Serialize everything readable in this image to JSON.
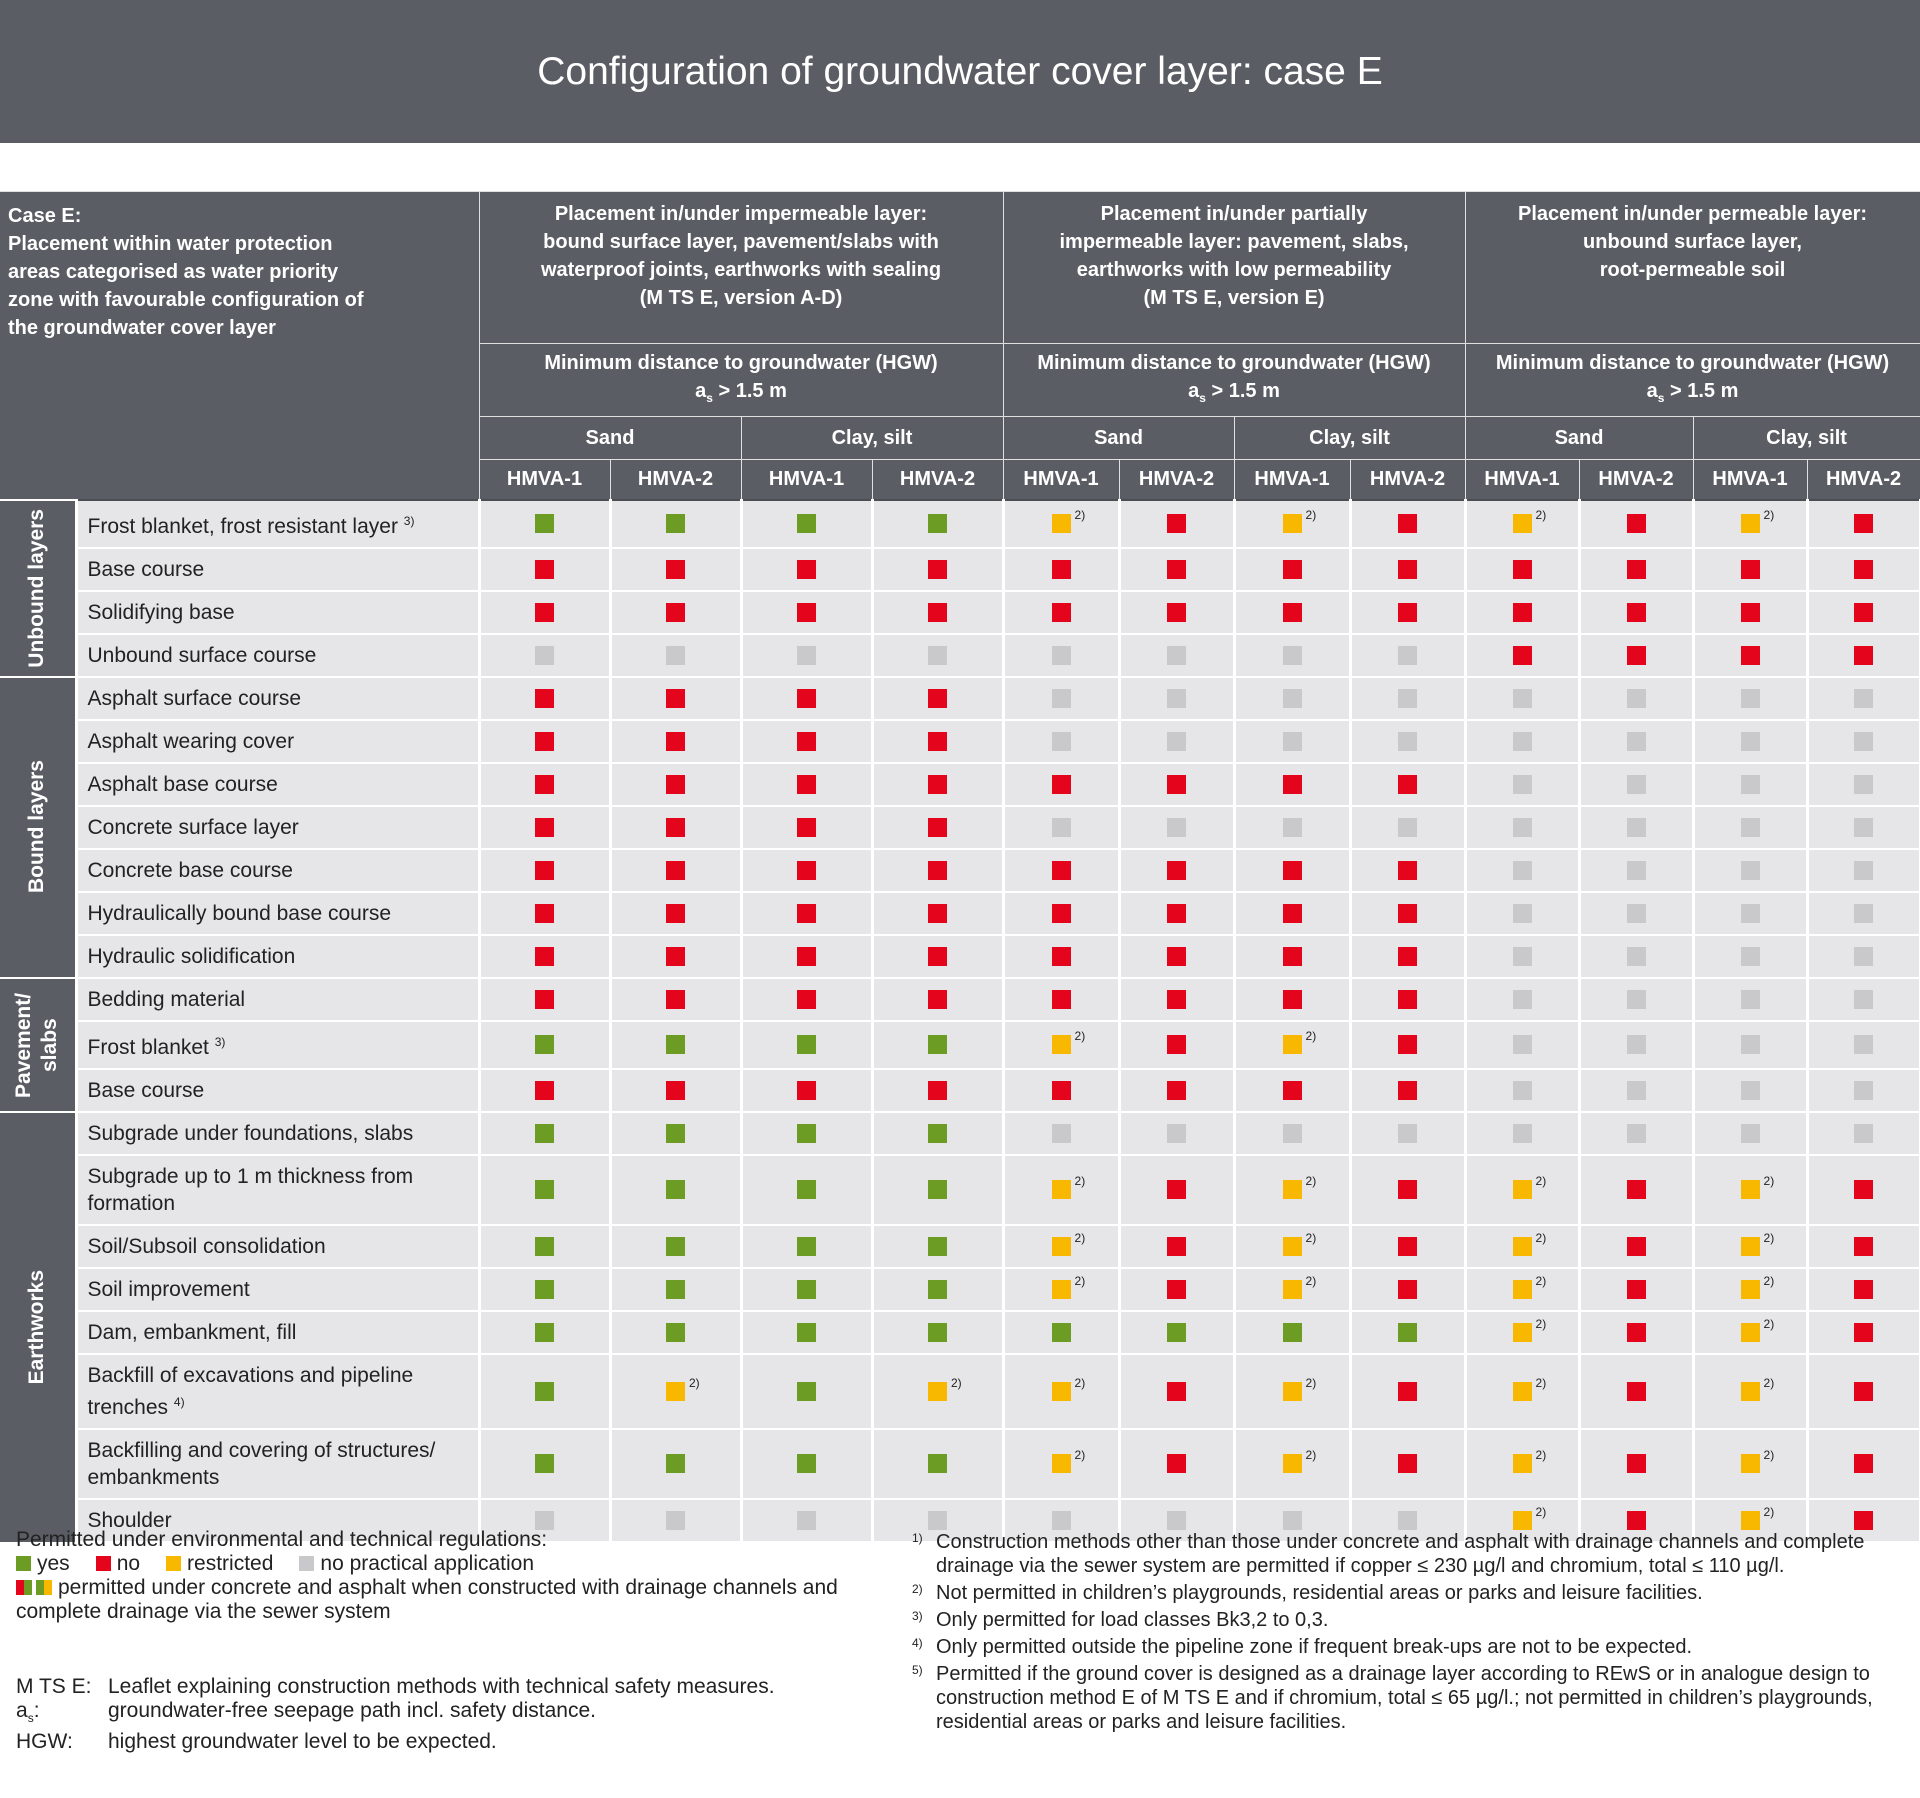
{
  "header": {
    "title": "Configuration of groundwater cover layer: case E"
  },
  "table": {
    "corner": {
      "case": "Case E:",
      "text": "Placement within water protection areas categorised as water priority zone with favourable configuration of the groundwater cover layer"
    },
    "column_groups": [
      {
        "lines": [
          "Placement in/under impermeable layer:",
          "bound surface layer, pavement/slabs with",
          "waterproof joints, earthworks with sealing",
          "(M TS E, version A-D)"
        ],
        "distance": {
          "label": "Minimum distance to groundwater (HGW)",
          "symbol": "a",
          "subscript": "s",
          "condition": "> 1.5 m"
        },
        "soils": [
          {
            "name": "Sand",
            "products": [
              "HMVA-1",
              "HMVA-2"
            ]
          },
          {
            "name": "Clay, silt",
            "products": [
              "HMVA-1",
              "HMVA-2"
            ]
          }
        ]
      },
      {
        "lines": [
          "Placement in/under partially",
          "impermeable layer: pavement, slabs,",
          "earthworks with low permeability",
          "(M TS E, version E)"
        ],
        "distance": {
          "label": "Minimum distance to groundwater (HGW)",
          "symbol": "a",
          "subscript": "s",
          "condition": "> 1.5 m"
        },
        "soils": [
          {
            "name": "Sand",
            "products": [
              "HMVA-1",
              "HMVA-2"
            ]
          },
          {
            "name": "Clay, silt",
            "products": [
              "HMVA-1",
              "HMVA-2"
            ]
          }
        ]
      },
      {
        "lines": [
          "Placement in/under permeable layer:",
          "unbound surface layer,",
          "root-permeable soil"
        ],
        "distance": {
          "label": "Minimum distance to groundwater (HGW)",
          "symbol": "a",
          "subscript": "s",
          "condition": "> 1.5 m"
        },
        "soils": [
          {
            "name": "Sand",
            "products": [
              "HMVA-1",
              "HMVA-2"
            ]
          },
          {
            "name": "Clay, silt",
            "products": [
              "HMVA-1",
              "HMVA-2"
            ]
          }
        ]
      }
    ],
    "row_groups": [
      {
        "label": "Unbound layers",
        "rows": [
          {
            "label": "Frost blanket, frost resistant layer",
            "note": "3)",
            "cells": [
              "#6d9c24",
              "#6d9c24",
              "#6d9c24",
              "#6d9c24",
              {
                "color": "#f9b800",
                "note": "2)"
              },
              "#e4051c",
              {
                "color": "#f9b800",
                "note": "2)"
              },
              "#e4051c",
              {
                "color": "#f9b800",
                "note": "2)"
              },
              "#e4051c",
              {
                "color": "#f9b800",
                "note": "2)"
              },
              "#e4051c"
            ]
          },
          {
            "label": "Base course",
            "cells": [
              "#e4051c",
              "#e4051c",
              "#e4051c",
              "#e4051c",
              "#e4051c",
              "#e4051c",
              "#e4051c",
              "#e4051c",
              "#e4051c",
              "#e4051c",
              "#e4051c",
              "#e4051c"
            ]
          },
          {
            "label": "Solidifying base",
            "cells": [
              "#e4051c",
              "#e4051c",
              "#e4051c",
              "#e4051c",
              "#e4051c",
              "#e4051c",
              "#e4051c",
              "#e4051c",
              "#e4051c",
              "#e4051c",
              "#e4051c",
              "#e4051c"
            ]
          },
          {
            "label": "Unbound surface course",
            "cells": [
              "#c9c9cb",
              "#c9c9cb",
              "#c9c9cb",
              "#c9c9cb",
              "#c9c9cb",
              "#c9c9cb",
              "#c9c9cb",
              "#c9c9cb",
              "#e4051c",
              "#e4051c",
              "#e4051c",
              "#e4051c"
            ]
          }
        ]
      },
      {
        "label": "Bound layers",
        "rows": [
          {
            "label": "Asphalt surface course",
            "cells": [
              "#e4051c",
              "#e4051c",
              "#e4051c",
              "#e4051c",
              "#c9c9cb",
              "#c9c9cb",
              "#c9c9cb",
              "#c9c9cb",
              "#c9c9cb",
              "#c9c9cb",
              "#c9c9cb",
              "#c9c9cb"
            ]
          },
          {
            "label": "Asphalt wearing cover",
            "cells": [
              "#e4051c",
              "#e4051c",
              "#e4051c",
              "#e4051c",
              "#c9c9cb",
              "#c9c9cb",
              "#c9c9cb",
              "#c9c9cb",
              "#c9c9cb",
              "#c9c9cb",
              "#c9c9cb",
              "#c9c9cb"
            ]
          },
          {
            "label": "Asphalt base course",
            "cells": [
              "#e4051c",
              "#e4051c",
              "#e4051c",
              "#e4051c",
              "#e4051c",
              "#e4051c",
              "#e4051c",
              "#e4051c",
              "#c9c9cb",
              "#c9c9cb",
              "#c9c9cb",
              "#c9c9cb"
            ]
          },
          {
            "label": "Concrete surface layer",
            "cells": [
              "#e4051c",
              "#e4051c",
              "#e4051c",
              "#e4051c",
              "#c9c9cb",
              "#c9c9cb",
              "#c9c9cb",
              "#c9c9cb",
              "#c9c9cb",
              "#c9c9cb",
              "#c9c9cb",
              "#c9c9cb"
            ]
          },
          {
            "label": "Concrete base course",
            "cells": [
              "#e4051c",
              "#e4051c",
              "#e4051c",
              "#e4051c",
              "#e4051c",
              "#e4051c",
              "#e4051c",
              "#e4051c",
              "#c9c9cb",
              "#c9c9cb",
              "#c9c9cb",
              "#c9c9cb"
            ]
          },
          {
            "label": "Hydraulically bound base course",
            "cells": [
              "#e4051c",
              "#e4051c",
              "#e4051c",
              "#e4051c",
              "#e4051c",
              "#e4051c",
              "#e4051c",
              "#e4051c",
              "#c9c9cb",
              "#c9c9cb",
              "#c9c9cb",
              "#c9c9cb"
            ]
          },
          {
            "label": "Hydraulic solidification",
            "cells": [
              "#e4051c",
              "#e4051c",
              "#e4051c",
              "#e4051c",
              "#e4051c",
              "#e4051c",
              "#e4051c",
              "#e4051c",
              "#c9c9cb",
              "#c9c9cb",
              "#c9c9cb",
              "#c9c9cb"
            ]
          }
        ]
      },
      {
        "label": "Pavement/ slabs",
        "rows": [
          {
            "label": "Bedding material",
            "cells": [
              "#e4051c",
              "#e4051c",
              "#e4051c",
              "#e4051c",
              "#e4051c",
              "#e4051c",
              "#e4051c",
              "#e4051c",
              "#c9c9cb",
              "#c9c9cb",
              "#c9c9cb",
              "#c9c9cb"
            ]
          },
          {
            "label": "Frost blanket",
            "note": "3)",
            "cells": [
              "#6d9c24",
              "#6d9c24",
              "#6d9c24",
              "#6d9c24",
              {
                "color": "#f9b800",
                "note": "2)"
              },
              "#e4051c",
              {
                "color": "#f9b800",
                "note": "2)"
              },
              "#e4051c",
              "#c9c9cb",
              "#c9c9cb",
              "#c9c9cb",
              "#c9c9cb"
            ]
          },
          {
            "label": "Base course",
            "cells": [
              "#e4051c",
              "#e4051c",
              "#e4051c",
              "#e4051c",
              "#e4051c",
              "#e4051c",
              "#e4051c",
              "#e4051c",
              "#c9c9cb",
              "#c9c9cb",
              "#c9c9cb",
              "#c9c9cb"
            ]
          }
        ]
      },
      {
        "label": "Earthworks",
        "rows": [
          {
            "label": "Subgrade under foundations, slabs",
            "cells": [
              "#6d9c24",
              "#6d9c24",
              "#6d9c24",
              "#6d9c24",
              "#c9c9cb",
              "#c9c9cb",
              "#c9c9cb",
              "#c9c9cb",
              "#c9c9cb",
              "#c9c9cb",
              "#c9c9cb",
              "#c9c9cb"
            ]
          },
          {
            "label": "Subgrade up to 1 m thickness from formation",
            "cells": [
              "#6d9c24",
              "#6d9c24",
              "#6d9c24",
              "#6d9c24",
              {
                "color": "#f9b800",
                "note": "2)"
              },
              "#e4051c",
              {
                "color": "#f9b800",
                "note": "2)"
              },
              "#e4051c",
              {
                "color": "#f9b800",
                "note": "2)"
              },
              "#e4051c",
              {
                "color": "#f9b800",
                "note": "2)"
              },
              "#e4051c"
            ]
          },
          {
            "label": "Soil/Subsoil consolidation",
            "cells": [
              "#6d9c24",
              "#6d9c24",
              "#6d9c24",
              "#6d9c24",
              {
                "color": "#f9b800",
                "note": "2)"
              },
              "#e4051c",
              {
                "color": "#f9b800",
                "note": "2)"
              },
              "#e4051c",
              {
                "color": "#f9b800",
                "note": "2)"
              },
              "#e4051c",
              {
                "color": "#f9b800",
                "note": "2)"
              },
              "#e4051c"
            ]
          },
          {
            "label": "Soil improvement",
            "cells": [
              "#6d9c24",
              "#6d9c24",
              "#6d9c24",
              "#6d9c24",
              {
                "color": "#f9b800",
                "note": "2)"
              },
              "#e4051c",
              {
                "color": "#f9b800",
                "note": "2)"
              },
              "#e4051c",
              {
                "color": "#f9b800",
                "note": "2)"
              },
              "#e4051c",
              {
                "color": "#f9b800",
                "note": "2)"
              },
              "#e4051c"
            ]
          },
          {
            "label": "Dam, embankment, fill",
            "cells": [
              "#6d9c24",
              "#6d9c24",
              "#6d9c24",
              "#6d9c24",
              "#6d9c24",
              "#6d9c24",
              "#6d9c24",
              "#6d9c24",
              {
                "color": "#f9b800",
                "note": "2)"
              },
              "#e4051c",
              {
                "color": "#f9b800",
                "note": "2)"
              },
              "#e4051c"
            ]
          },
          {
            "label": "Backfill of excavations and pipeline trenches",
            "note": "4)",
            "cells": [
              "#6d9c24",
              {
                "color": "#f9b800",
                "note": "2)"
              },
              "#6d9c24",
              {
                "color": "#f9b800",
                "note": "2)"
              },
              {
                "color": "#f9b800",
                "note": "2)"
              },
              "#e4051c",
              {
                "color": "#f9b800",
                "note": "2)"
              },
              "#e4051c",
              {
                "color": "#f9b800",
                "note": "2)"
              },
              "#e4051c",
              {
                "color": "#f9b800",
                "note": "2)"
              },
              "#e4051c"
            ]
          },
          {
            "label": "Backfilling and covering of structures/ embankments",
            "cells": [
              "#6d9c24",
              "#6d9c24",
              "#6d9c24",
              "#6d9c24",
              {
                "color": "#f9b800",
                "note": "2)"
              },
              "#e4051c",
              {
                "color": "#f9b800",
                "note": "2)"
              },
              "#e4051c",
              {
                "color": "#f9b800",
                "note": "2)"
              },
              "#e4051c",
              {
                "color": "#f9b800",
                "note": "2)"
              },
              "#e4051c"
            ]
          },
          {
            "label": "Shoulder",
            "cells": [
              "#c9c9cb",
              "#c9c9cb",
              "#c9c9cb",
              "#c9c9cb",
              "#c9c9cb",
              "#c9c9cb",
              "#c9c9cb",
              "#c9c9cb",
              {
                "color": "#f9b800",
                "note": "2)"
              },
              "#e4051c",
              {
                "color": "#f9b800",
                "note": "2)"
              },
              "#e4051c"
            ]
          }
        ]
      }
    ]
  },
  "legend": {
    "heading": "Permitted under environmental and technical regulations:",
    "items": [
      {
        "label": "yes",
        "color": "#6d9c24"
      },
      {
        "label": "no",
        "color": "#e4051c"
      },
      {
        "label": "restricted",
        "color": "#f9b800"
      },
      {
        "label": "no practical application",
        "color": "#c9c9cb"
      }
    ],
    "mixed": "permitted under concrete and asphalt when constructed with drainage channels and complete drainage via the sewer system"
  },
  "abbreviations": [
    {
      "term": "M TS E:",
      "text": "Leaflet explaining construction methods with technical safety measures."
    },
    {
      "term": "a",
      "subscript": "s",
      "suffix": ":",
      "text": "groundwater-free seepage path incl. safety distance."
    },
    {
      "term": "HGW:",
      "text": "highest groundwater level to be expected."
    }
  ],
  "footnotes": [
    {
      "mark": "1)",
      "text": "Construction methods other than those under concrete and asphalt with drainage channels and complete drainage via the sewer system are permitted if copper ≤ 230 µg/l and chromium, total ≤ 110 µg/l."
    },
    {
      "mark": "2)",
      "text": "Not permitted in children’s playgrounds, residential areas or parks and leisure facilities."
    },
    {
      "mark": "3)",
      "text": "Only permitted for load classes Bk3,2 to 0,3."
    },
    {
      "mark": "4)",
      "text": "Only permitted outside the pipeline zone if frequent break-ups are not to be expected."
    },
    {
      "mark": "5)",
      "text": "Permitted if the ground cover is designed as a drainage layer according to REwS or in analogue design to construction method E of M TS E and if chromium, total ≤ 65 µg/l.; not permitted in children’s playgrounds, residential areas or parks and leisure facilities."
    }
  ]
}
